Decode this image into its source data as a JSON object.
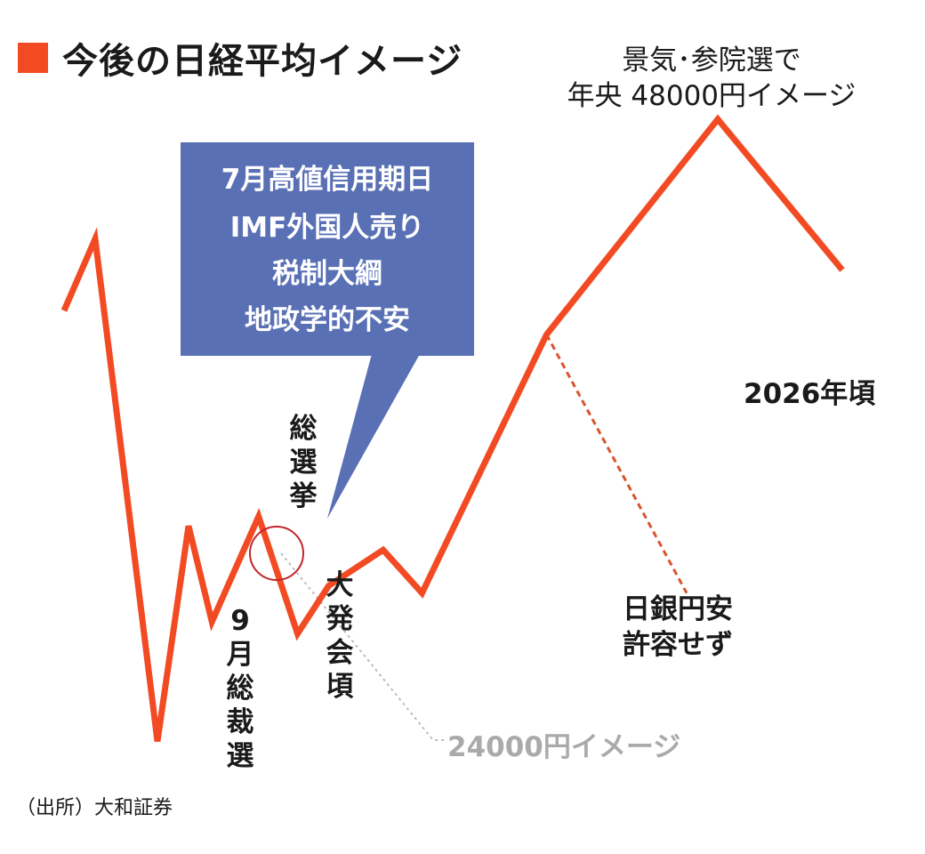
{
  "header": {
    "title": "今後の日経平均イメージ"
  },
  "source": "（出所）大和証券",
  "colors": {
    "line": "#F24B24",
    "callout": "#5A70B5",
    "circle": "#C0262B",
    "dotted": "#BBBBBB"
  },
  "chart_data": {
    "type": "line",
    "title": "今後の日経平均イメージ",
    "series": [
      {
        "values": [
          {
            "x": 0.0,
            "y": 40000
          },
          {
            "x": 0.2,
            "y": 43000
          },
          {
            "x": 0.6,
            "y": 22000
          },
          {
            "x": 0.8,
            "y": 31000
          },
          {
            "x": 0.95,
            "y": 27000
          },
          {
            "x": 1.25,
            "y": 31400
          },
          {
            "x": 1.5,
            "y": 26500
          },
          {
            "x": 1.7,
            "y": 28500
          },
          {
            "x": 2.05,
            "y": 30000
          },
          {
            "x": 2.3,
            "y": 28200
          },
          {
            "x": 3.1,
            "y": 39000
          },
          {
            "x": 4.2,
            "y": 48000
          },
          {
            "x": 5.0,
            "y": 41700
          }
        ]
      }
    ],
    "branch": {
      "type": "dashed",
      "values": [
        {
          "x": 3.1,
          "y": 39000
        },
        {
          "x": 4.0,
          "y": 28200
        }
      ]
    },
    "annotations": {
      "peak": [
        "景気･参院選で",
        "年央 48000円イメージ"
      ],
      "end": "2026年頃",
      "callout": [
        "7月高値信用期日",
        "IMF外国人売り",
        "税制大綱",
        "地政学的不安"
      ],
      "election": [
        "総",
        "選",
        "挙"
      ],
      "sept": [
        "9",
        "月",
        "総",
        "裁",
        "選"
      ],
      "daihatsukai": [
        "大",
        "発",
        "会",
        "頃"
      ],
      "boj": [
        "日銀円安",
        "許容せず"
      ],
      "low": "24000円イメージ"
    }
  }
}
